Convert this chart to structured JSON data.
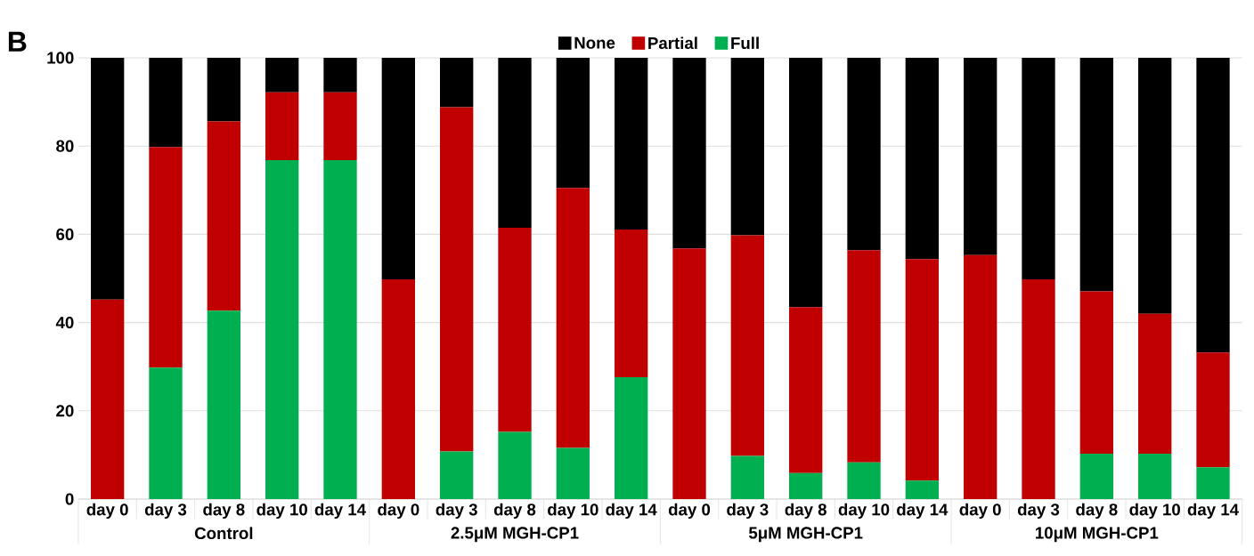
{
  "chart_data": {
    "type": "bar",
    "stacked": true,
    "categories": [
      "day 0",
      "day 3",
      "day 8",
      "day 10",
      "day 14",
      "day 0",
      "day 3",
      "day 8",
      "day 10",
      "day 14",
      "day 0",
      "day 3",
      "day 8",
      "day 10",
      "day 14",
      "day 0",
      "day 3",
      "day 8",
      "day 10",
      "day 14"
    ],
    "series": [
      {
        "name": "Full",
        "color": "#00b050",
        "values": [
          0,
          29.8,
          42.7,
          76.8,
          76.8,
          0,
          10.8,
          15.2,
          11.6,
          27.6,
          0,
          9.8,
          5.9,
          8.3,
          4.2,
          0,
          0,
          10.3,
          10.3,
          7.2
        ]
      },
      {
        "name": "Partial",
        "color": "#c00000",
        "values": [
          45.2,
          50.0,
          42.9,
          15.4,
          15.4,
          49.8,
          78.0,
          46.3,
          58.9,
          33.5,
          56.8,
          50.0,
          37.6,
          48.1,
          50.2,
          55.3,
          49.8,
          36.8,
          31.7,
          26.0
        ]
      },
      {
        "name": "None",
        "color": "#000000",
        "values": [
          54.8,
          20.2,
          14.4,
          7.8,
          7.8,
          50.2,
          11.2,
          38.5,
          29.5,
          38.9,
          43.2,
          40.2,
          56.5,
          43.6,
          45.6,
          44.7,
          50.2,
          52.9,
          58.0,
          66.8
        ]
      }
    ],
    "ylim": [
      0,
      100
    ],
    "yticks": [
      0,
      20,
      40,
      60,
      80,
      100
    ],
    "grid": "y",
    "legend": "top",
    "annotations": [
      "B",
      "Control",
      "2.5μM MGH-CP1",
      "5μM MGH-CP1",
      "10μM MGH-CP1"
    ]
  }
}
